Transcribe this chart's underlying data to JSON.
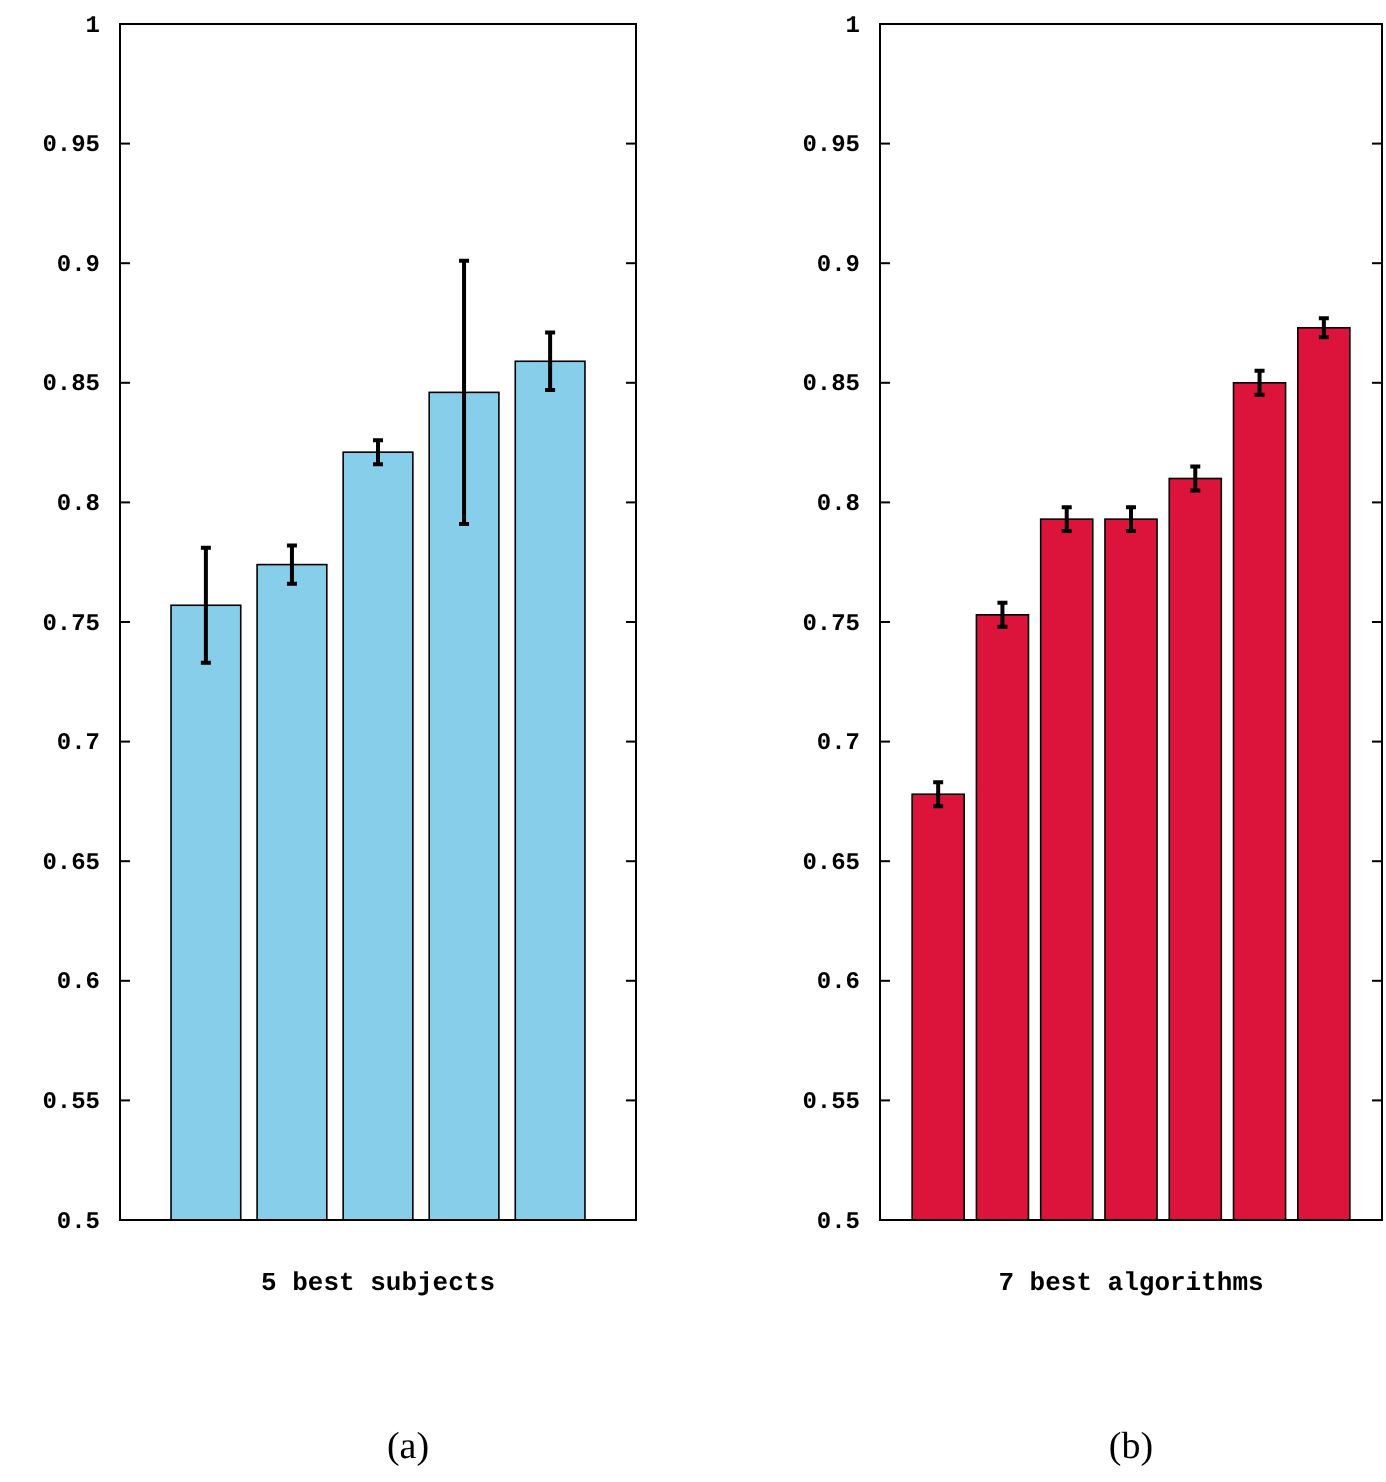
{
  "chart_data": [
    {
      "type": "bar",
      "categories": [
        null,
        null,
        null,
        null,
        null
      ],
      "xlabel": "5 best subjects",
      "annotations": [
        "(a)"
      ],
      "series": [
        {
          "color": "#87ceeb",
          "values": [
            0.757,
            0.774,
            0.821,
            0.846,
            0.859
          ],
          "errors": [
            0.024,
            0.008,
            0.005,
            0.055,
            0.012
          ]
        }
      ],
      "ylim": [
        0.5,
        1
      ],
      "yticks": [
        0.5,
        0.55,
        0.6,
        0.65,
        0.7,
        0.75,
        0.8,
        0.85,
        0.9,
        0.95,
        1
      ],
      "tick_labels": "y",
      "grid": false
    },
    {
      "type": "bar",
      "categories": [
        null,
        null,
        null,
        null,
        null,
        null,
        null
      ],
      "xlabel": "7 best algorithms",
      "annotations": [
        "(b)"
      ],
      "series": [
        {
          "color": "#dc143c",
          "values": [
            0.678,
            0.753,
            0.793,
            0.793,
            0.81,
            0.85,
            0.873
          ],
          "errors": [
            0.005,
            0.005,
            0.005,
            0.005,
            0.005,
            0.005,
            0.004
          ]
        }
      ],
      "ylim": [
        0.5,
        1
      ],
      "yticks": [
        0.5,
        0.55,
        0.6,
        0.65,
        0.7,
        0.75,
        0.8,
        0.85,
        0.9,
        0.95,
        1
      ],
      "tick_labels": "y",
      "grid": false
    }
  ]
}
